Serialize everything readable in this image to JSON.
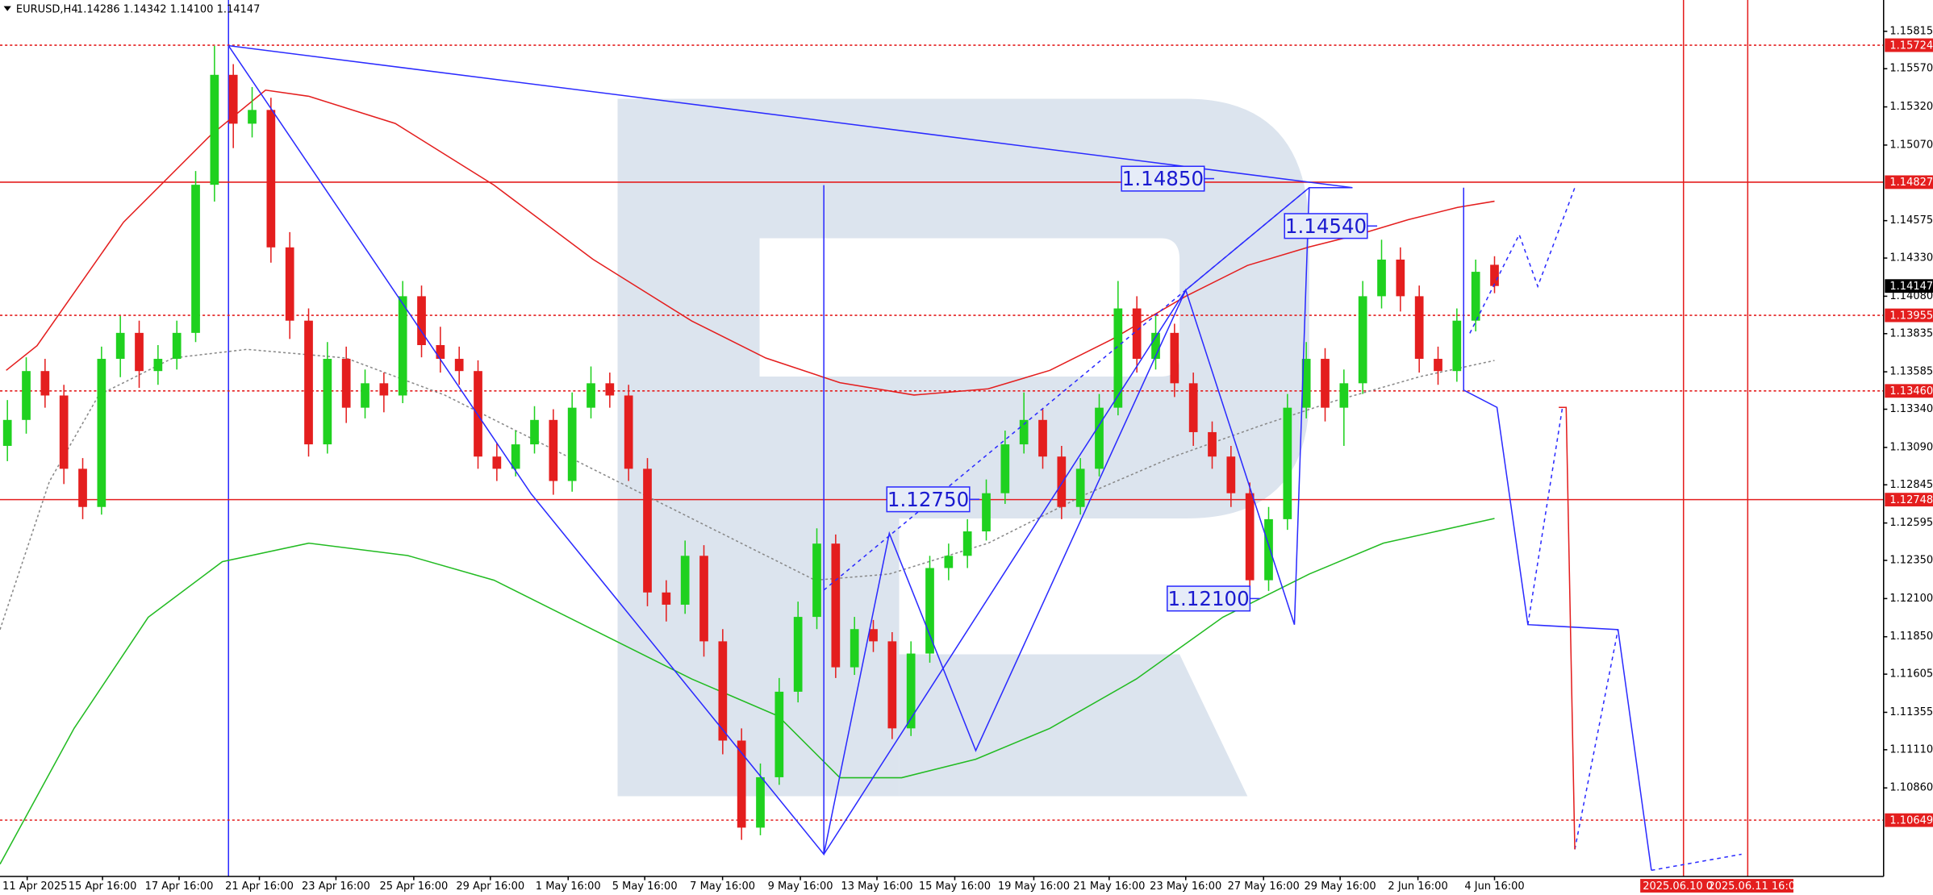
{
  "chart_data": {
    "type": "candlestick",
    "symbol": "EURUSD,H4",
    "info": "1.14286 1.14342 1.14100 1.14147",
    "up_color": "#1fd11f",
    "down_color": "#e41e1e",
    "ylim": [
      1.1028,
      1.1602
    ],
    "yticks": [
      1.15815,
      {
        "value": 1.1557,
        "label": "1.15570"
      },
      {
        "value": 1.1532,
        "label": "1.15320"
      },
      {
        "value": 1.1507,
        "label": "1.15070"
      },
      1.14575,
      {
        "value": 1.1433,
        "label": "1.14330"
      },
      {
        "value": 1.1408,
        "label": "1.14080"
      },
      1.13835,
      1.13585,
      {
        "value": 1.1334,
        "label": "1.13340"
      },
      {
        "value": 1.1309,
        "label": "1.13090"
      },
      1.12845,
      1.12595,
      {
        "value": 1.1235,
        "label": "1.12350"
      },
      {
        "value": 1.121,
        "label": "1.12100"
      },
      {
        "value": 1.1185,
        "label": "1.11850"
      },
      1.11605,
      1.11355,
      {
        "value": 1.1111,
        "label": "1.11110"
      },
      {
        "value": 1.1086,
        "label": "1.10860"
      }
    ],
    "x_labels": [
      "11 Apr 2025",
      "15 Apr 16:00",
      "17 Apr 16:00",
      "21 Apr 16:00",
      "23 Apr 16:00",
      "25 Apr 16:00",
      "29 Apr 16:00",
      "1 May 16:00",
      "5 May 16:00",
      "7 May 16:00",
      "9 May 16:00",
      "13 May 16:00",
      "15 May 16:00",
      "19 May 16:00",
      "21 May 16:00",
      "23 May 16:00",
      "27 May 16:00",
      "29 May 16:00",
      "2 Jun 16:00",
      "4 Jun 16:00"
    ],
    "time_markers": [
      "2025.06.10 0",
      "2025.06.11 16:00"
    ],
    "levels": [
      {
        "value": 1.15724,
        "label": "1.15724",
        "style": "dotted",
        "color": "#e41e1e"
      },
      {
        "value": 1.14827,
        "label": "1.14827",
        "style": "solid",
        "color": "#e41e1e"
      },
      {
        "value": 1.14147,
        "label": "1.14147",
        "style": "none",
        "color": "#000000"
      },
      {
        "value": 1.13955,
        "label": "1.13955",
        "style": "dotted",
        "color": "#e41e1e"
      },
      {
        "value": 1.1346,
        "label": "1.13460",
        "style": "dotted",
        "color": "#e41e1e"
      },
      {
        "value": 1.12748,
        "label": "1.12748",
        "style": "solid",
        "color": "#e41e1e"
      },
      {
        "value": 1.10649,
        "label": "1.10649",
        "style": "dotted",
        "color": "#e41e1e"
      }
    ],
    "annotations": [
      {
        "value": 1.1485,
        "label": "1.14850"
      },
      {
        "value": 1.1454,
        "label": "1.14540"
      },
      {
        "value": 1.1275,
        "label": "1.12750"
      },
      {
        "value": 1.121,
        "label": "1.12100"
      }
    ],
    "candles": [
      [
        1.131,
        1.134,
        1.13,
        1.1327
      ],
      [
        1.1327,
        1.1368,
        1.1318,
        1.1359
      ],
      [
        1.1359,
        1.1367,
        1.1335,
        1.1343
      ],
      [
        1.1343,
        1.135,
        1.1285,
        1.1295
      ],
      [
        1.1295,
        1.1302,
        1.1262,
        1.127
      ],
      [
        1.127,
        1.1375,
        1.1265,
        1.1367
      ],
      [
        1.1367,
        1.1395,
        1.1355,
        1.1384
      ],
      [
        1.1384,
        1.1392,
        1.1348,
        1.1359
      ],
      [
        1.1359,
        1.1376,
        1.135,
        1.1367
      ],
      [
        1.1367,
        1.1392,
        1.136,
        1.1384
      ],
      [
        1.1384,
        1.149,
        1.1378,
        1.1481
      ],
      [
        1.1481,
        1.1572,
        1.147,
        1.1553
      ],
      [
        1.1553,
        1.156,
        1.1505,
        1.1521
      ],
      [
        1.1521,
        1.1545,
        1.1512,
        1.153
      ],
      [
        1.153,
        1.1538,
        1.143,
        1.144
      ],
      [
        1.144,
        1.145,
        1.138,
        1.1392
      ],
      [
        1.1392,
        1.14,
        1.1303,
        1.1311
      ],
      [
        1.1311,
        1.1378,
        1.1305,
        1.1367
      ],
      [
        1.1367,
        1.1375,
        1.1325,
        1.1335
      ],
      [
        1.1335,
        1.136,
        1.1328,
        1.1351
      ],
      [
        1.1351,
        1.1358,
        1.1332,
        1.1343
      ],
      [
        1.1343,
        1.1418,
        1.1338,
        1.1408
      ],
      [
        1.1408,
        1.1415,
        1.1368,
        1.1376
      ],
      [
        1.1376,
        1.1388,
        1.1358,
        1.1367
      ],
      [
        1.1367,
        1.1375,
        1.135,
        1.1359
      ],
      [
        1.1359,
        1.1366,
        1.1295,
        1.1303
      ],
      [
        1.1303,
        1.1312,
        1.1287,
        1.1295
      ],
      [
        1.1295,
        1.132,
        1.129,
        1.1311
      ],
      [
        1.1311,
        1.1336,
        1.1305,
        1.1327
      ],
      [
        1.1327,
        1.1334,
        1.1278,
        1.1287
      ],
      [
        1.1287,
        1.1345,
        1.128,
        1.1335
      ],
      [
        1.1335,
        1.1362,
        1.1328,
        1.1351
      ],
      [
        1.1351,
        1.1358,
        1.1335,
        1.1343
      ],
      [
        1.1343,
        1.135,
        1.1287,
        1.1295
      ],
      [
        1.1295,
        1.1302,
        1.1205,
        1.1214
      ],
      [
        1.1214,
        1.1222,
        1.1195,
        1.1206
      ],
      [
        1.1206,
        1.1248,
        1.12,
        1.1238
      ],
      [
        1.1238,
        1.1245,
        1.1172,
        1.1182
      ],
      [
        1.1182,
        1.119,
        1.1108,
        1.1117
      ],
      [
        1.1117,
        1.1125,
        1.1052,
        1.106
      ],
      [
        1.106,
        1.1102,
        1.1055,
        1.1093
      ],
      [
        1.1093,
        1.1158,
        1.1088,
        1.1149
      ],
      [
        1.1149,
        1.1208,
        1.1142,
        1.1198
      ],
      [
        1.1198,
        1.1256,
        1.119,
        1.1246
      ],
      [
        1.1246,
        1.1252,
        1.1158,
        1.1165
      ],
      [
        1.1165,
        1.1198,
        1.116,
        1.119
      ],
      [
        1.119,
        1.1196,
        1.1175,
        1.1182
      ],
      [
        1.1182,
        1.1188,
        1.1118,
        1.1125
      ],
      [
        1.1125,
        1.1182,
        1.112,
        1.1174
      ],
      [
        1.1174,
        1.1238,
        1.1168,
        1.123
      ],
      [
        1.123,
        1.1246,
        1.1222,
        1.1238
      ],
      [
        1.1238,
        1.1262,
        1.123,
        1.1254
      ],
      [
        1.1254,
        1.1288,
        1.1248,
        1.1279
      ],
      [
        1.1279,
        1.132,
        1.1272,
        1.1311
      ],
      [
        1.1311,
        1.1345,
        1.1305,
        1.1327
      ],
      [
        1.1327,
        1.1334,
        1.1295,
        1.1303
      ],
      [
        1.1303,
        1.131,
        1.1262,
        1.127
      ],
      [
        1.127,
        1.1302,
        1.1265,
        1.1295
      ],
      [
        1.1295,
        1.1344,
        1.129,
        1.1335
      ],
      [
        1.1335,
        1.1418,
        1.133,
        1.14
      ],
      [
        1.14,
        1.1408,
        1.1358,
        1.1367
      ],
      [
        1.1367,
        1.1395,
        1.136,
        1.1384
      ],
      [
        1.1384,
        1.139,
        1.1342,
        1.1351
      ],
      [
        1.1351,
        1.1358,
        1.131,
        1.1319
      ],
      [
        1.1319,
        1.1326,
        1.1295,
        1.1303
      ],
      [
        1.1303,
        1.131,
        1.127,
        1.1279
      ],
      [
        1.1279,
        1.1286,
        1.1212,
        1.1222
      ],
      [
        1.1222,
        1.127,
        1.1215,
        1.1262
      ],
      [
        1.1262,
        1.1344,
        1.1255,
        1.1335
      ],
      [
        1.1335,
        1.1378,
        1.1328,
        1.1367
      ],
      [
        1.1367,
        1.1374,
        1.1326,
        1.1335
      ],
      [
        1.1335,
        1.136,
        1.131,
        1.1351
      ],
      [
        1.1351,
        1.1418,
        1.1344,
        1.1408
      ],
      [
        1.1408,
        1.1445,
        1.14,
        1.1432
      ],
      [
        1.1432,
        1.144,
        1.1398,
        1.1408
      ],
      [
        1.1408,
        1.1415,
        1.1358,
        1.1367
      ],
      [
        1.1367,
        1.1375,
        1.135,
        1.1359
      ],
      [
        1.1359,
        1.14,
        1.1352,
        1.1392
      ],
      [
        1.1392,
        1.1432,
        1.1385,
        1.1424
      ],
      [
        1.14286,
        1.14342,
        1.141,
        1.14147
      ]
    ]
  }
}
